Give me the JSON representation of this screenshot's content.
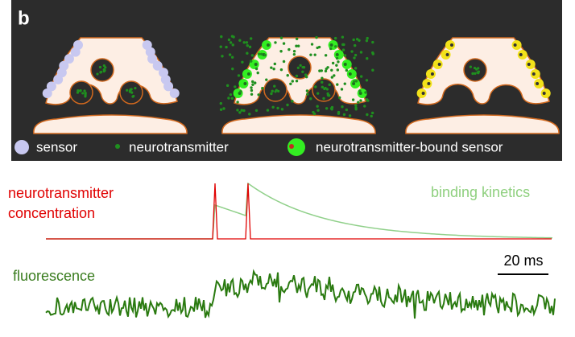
{
  "panel_label": "b",
  "legend": [
    {
      "label": "sensor"
    },
    {
      "label": "neurotransmitter"
    },
    {
      "label": "neurotransmitter-bound sensor"
    }
  ],
  "traces": {
    "concentration_label": [
      "neurotransmitter",
      "concentration"
    ],
    "kinetics_label": "binding kinetics",
    "fluorescence_label": "fluorescence",
    "scale_bar": "20 ms"
  }
}
